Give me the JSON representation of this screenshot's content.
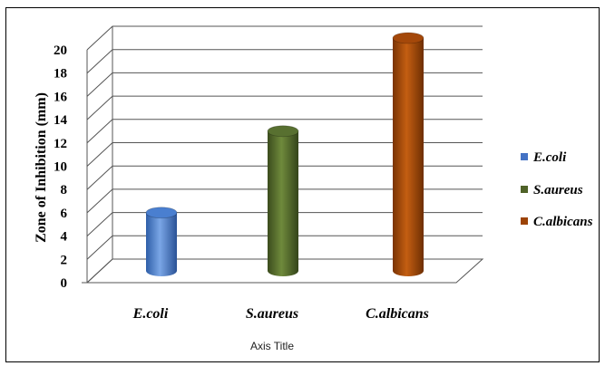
{
  "chart_data": {
    "type": "bar",
    "categories": [
      "E.coli",
      "S.aureus",
      "C.albicans"
    ],
    "series": [
      {
        "name": "E.coli",
        "values": [
          5,
          null,
          null
        ],
        "color": "#4472C4"
      },
      {
        "name": "S.aureus",
        "values": [
          null,
          12,
          null
        ],
        "color": "#4F6228"
      },
      {
        "name": "C.albicans",
        "values": [
          null,
          null,
          20
        ],
        "color": "#9C4306"
      }
    ],
    "values": [
      5,
      12,
      20
    ],
    "ylabel": "Zone of Inhibition (mm)",
    "xlabel": "Axis Title",
    "ylim": [
      0,
      20
    ],
    "yticks": [
      0,
      2,
      4,
      6,
      8,
      10,
      12,
      14,
      16,
      18,
      20
    ],
    "grid": true,
    "legend": "right",
    "style": "3d-cylinder"
  }
}
